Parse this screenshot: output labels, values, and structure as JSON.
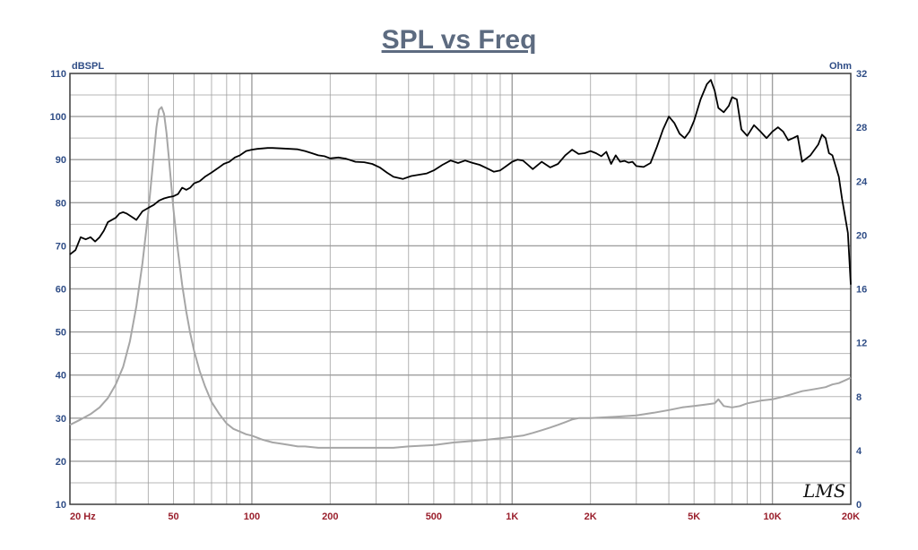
{
  "chart_data": {
    "type": "line",
    "title": "SPL vs Freq",
    "x_scale": "log",
    "xlim": [
      20,
      20000
    ],
    "x_ticks": [
      20,
      50,
      100,
      200,
      500,
      1000,
      2000,
      5000,
      10000,
      20000
    ],
    "x_tick_labels": [
      "20  Hz",
      "50",
      "100",
      "200",
      "500",
      "1K",
      "2K",
      "5K",
      "10K",
      "20K"
    ],
    "y_left": {
      "label": "dBSPL",
      "lim": [
        10,
        110
      ],
      "ticks": [
        10,
        20,
        30,
        40,
        50,
        60,
        70,
        80,
        90,
        100,
        110
      ]
    },
    "y_right": {
      "label": "Ohm",
      "lim": [
        0,
        32
      ],
      "ticks": [
        0,
        4,
        8,
        12,
        16,
        20,
        24,
        28,
        32
      ]
    },
    "grid": true,
    "colors": {
      "spl": "#000000",
      "impedance": "#a6a6a6",
      "grid": "#9a9a9a",
      "left_axis": "#2f4d86",
      "x_axis": "#9a1f2c"
    },
    "logo": "LMS",
    "series": [
      {
        "axis": "left",
        "x": [
          20,
          21,
          22,
          23,
          24,
          25,
          26,
          27,
          28,
          30,
          31,
          32,
          33,
          35,
          36,
          38,
          40,
          42,
          44,
          46,
          48,
          50,
          52,
          54,
          56,
          58,
          60,
          63,
          66,
          70,
          74,
          78,
          82,
          86,
          90,
          95,
          100,
          105,
          110,
          115,
          120,
          130,
          140,
          150,
          160,
          170,
          180,
          190,
          200,
          215,
          230,
          250,
          270,
          290,
          310,
          330,
          350,
          380,
          410,
          440,
          470,
          500,
          540,
          580,
          620,
          660,
          700,
          750,
          800,
          850,
          900,
          950,
          1000,
          1050,
          1100,
          1150,
          1200,
          1300,
          1400,
          1500,
          1600,
          1700,
          1800,
          1900,
          2000,
          2100,
          2200,
          2300,
          2400,
          2500,
          2600,
          2700,
          2800,
          2900,
          3000,
          3200,
          3400,
          3600,
          3800,
          4000,
          4200,
          4400,
          4600,
          4800,
          5000,
          5300,
          5600,
          5800,
          6000,
          6200,
          6500,
          6800,
          7000,
          7300,
          7600,
          8000,
          8500,
          9000,
          9500,
          10000,
          10500,
          11000,
          11500,
          12000,
          12500,
          13000,
          14000,
          15000,
          15500,
          16000,
          16500,
          17000,
          18000,
          18500,
          19000,
          19500,
          20000
        ],
        "values": [
          68,
          69,
          72,
          71.5,
          72,
          71,
          72,
          73.5,
          75.5,
          76.5,
          77.5,
          77.8,
          77.5,
          76.5,
          76,
          78,
          78.8,
          79.5,
          80.5,
          81,
          81.3,
          81.5,
          82,
          83.5,
          83,
          83.5,
          84.5,
          85,
          86,
          87,
          88,
          89,
          89.5,
          90.5,
          91,
          92,
          92.3,
          92.5,
          92.6,
          92.7,
          92.7,
          92.6,
          92.5,
          92.4,
          92,
          91.5,
          91,
          90.8,
          90.3,
          90.5,
          90.2,
          89.5,
          89.4,
          89,
          88.2,
          87,
          86,
          85.5,
          86.2,
          86.5,
          86.8,
          87.5,
          88.8,
          89.8,
          89.2,
          89.8,
          89.3,
          88.8,
          88,
          87.2,
          87.5,
          88.5,
          89.5,
          90,
          89.8,
          88.8,
          87.8,
          89.5,
          88.2,
          89,
          91,
          92.3,
          91.3,
          91.5,
          92,
          91.5,
          90.8,
          91.8,
          89,
          91,
          89.5,
          89.7,
          89.3,
          89.5,
          88.5,
          88.3,
          89.2,
          93,
          97,
          100,
          98.5,
          96,
          95,
          96.5,
          99,
          104,
          107.5,
          108.5,
          106,
          102,
          101,
          102.5,
          104.5,
          104,
          97,
          95.5,
          98,
          96.5,
          95,
          96.5,
          97.5,
          96.5,
          94.5,
          95,
          95.5,
          89.5,
          91,
          93.5,
          95.8,
          95,
          91.5,
          91,
          86,
          81,
          77,
          73,
          61
        ]
      },
      {
        "axis": "right",
        "x": [
          20,
          22,
          24,
          26,
          28,
          30,
          32,
          34,
          36,
          38,
          40,
          42,
          43,
          44,
          45,
          46,
          47,
          48,
          50,
          52,
          54,
          56,
          58,
          60,
          63,
          66,
          70,
          75,
          80,
          85,
          90,
          95,
          100,
          110,
          120,
          130,
          140,
          150,
          160,
          180,
          200,
          250,
          300,
          350,
          400,
          500,
          600,
          700,
          800,
          900,
          1000,
          1100,
          1200,
          1300,
          1400,
          1500,
          1600,
          1700,
          1800,
          2000,
          2500,
          3000,
          3500,
          4000,
          4500,
          5000,
          5500,
          6000,
          6200,
          6500,
          7000,
          7500,
          8000,
          8500,
          9000,
          10000,
          11000,
          12000,
          13000,
          14000,
          15000,
          16000,
          17000,
          18000,
          19000,
          20000
        ],
        "values": [
          5.9,
          6.3,
          6.7,
          7.2,
          7.9,
          8.9,
          10.2,
          12.1,
          14.7,
          17.9,
          21.7,
          26.0,
          28.0,
          29.3,
          29.5,
          29.0,
          27.6,
          25.7,
          21.9,
          18.8,
          16.3,
          14.3,
          12.7,
          11.4,
          9.9,
          8.8,
          7.6,
          6.7,
          6.0,
          5.6,
          5.4,
          5.2,
          5.1,
          4.8,
          4.6,
          4.5,
          4.4,
          4.3,
          4.3,
          4.2,
          4.2,
          4.2,
          4.2,
          4.2,
          4.3,
          4.4,
          4.6,
          4.7,
          4.8,
          4.9,
          5.0,
          5.1,
          5.3,
          5.5,
          5.7,
          5.9,
          6.1,
          6.3,
          6.4,
          6.4,
          6.5,
          6.6,
          6.8,
          7.0,
          7.2,
          7.3,
          7.4,
          7.5,
          7.8,
          7.3,
          7.2,
          7.3,
          7.5,
          7.6,
          7.7,
          7.8,
          8.0,
          8.2,
          8.4,
          8.5,
          8.6,
          8.7,
          8.9,
          9.0,
          9.2,
          9.4
        ]
      }
    ]
  }
}
